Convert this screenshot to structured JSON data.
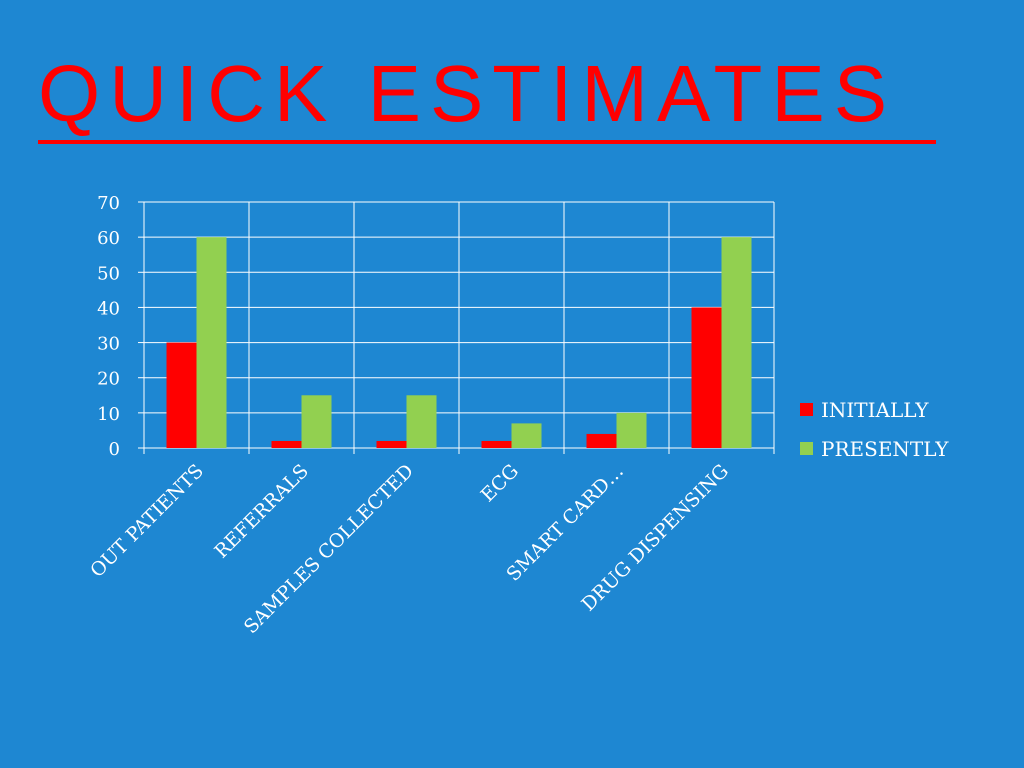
{
  "slide": {
    "title": "QUICK ESTIMATES"
  },
  "colors": {
    "background": "#1e87d2",
    "title": "#ff0000",
    "grid": "#ffffff"
  },
  "chart_data": {
    "type": "bar",
    "categories": [
      "OUT PATIENTS",
      "REFERRALS",
      "SAMPLES COLLECTED",
      "ECG",
      "SMART CARD…",
      "DRUG DISPENSING"
    ],
    "series": [
      {
        "name": "INITIALLY",
        "values": [
          30,
          2,
          2,
          2,
          4,
          40
        ],
        "color": "#ff0000"
      },
      {
        "name": "PRESENTLY",
        "values": [
          60,
          15,
          15,
          7,
          10,
          60
        ],
        "color": "#92d050"
      }
    ],
    "yticks": [
      "0",
      "10",
      "20",
      "30",
      "40",
      "50",
      "60",
      "70"
    ],
    "ylim": [
      0,
      70
    ],
    "grid": true,
    "legend": "right"
  }
}
